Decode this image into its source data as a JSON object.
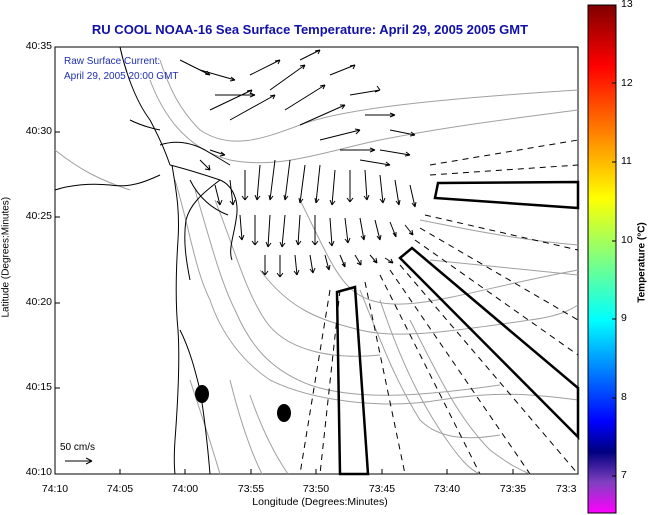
{
  "title": "RU COOL  NOAA-16  Sea Surface Temperature:  April 29, 2005 2005 GMT",
  "legend": {
    "line1": "Raw Surface Current:",
    "line2": "April 29, 2005 20:00 GMT"
  },
  "axes": {
    "xlabel": "Longitude (Degrees:Minutes)",
    "ylabel": "Latitude (Degrees:Minutes)",
    "yticks": [
      "40:35",
      "40:30",
      "40:25",
      "40:20",
      "40:15",
      "40:10"
    ],
    "xticks": [
      "74:10",
      "74:05",
      "74:00",
      "73:55",
      "73:50",
      "73:45",
      "73:40",
      "73:35",
      "73:3"
    ]
  },
  "colorbar": {
    "label": "Temperature (°C)",
    "ticks": [
      "13",
      "12",
      "11",
      "10",
      "9",
      "8",
      "7"
    ],
    "colors": [
      "#800000",
      "#ff0000",
      "#ff8000",
      "#ffff00",
      "#80ff80",
      "#00ffff",
      "#0080ff",
      "#0000ff",
      "#000080",
      "#ff00ff"
    ]
  },
  "scale_label": "50 cm/s",
  "colors": {
    "title": "#1010a8",
    "contour": "#a0a0a0",
    "coast": "#000000"
  }
}
